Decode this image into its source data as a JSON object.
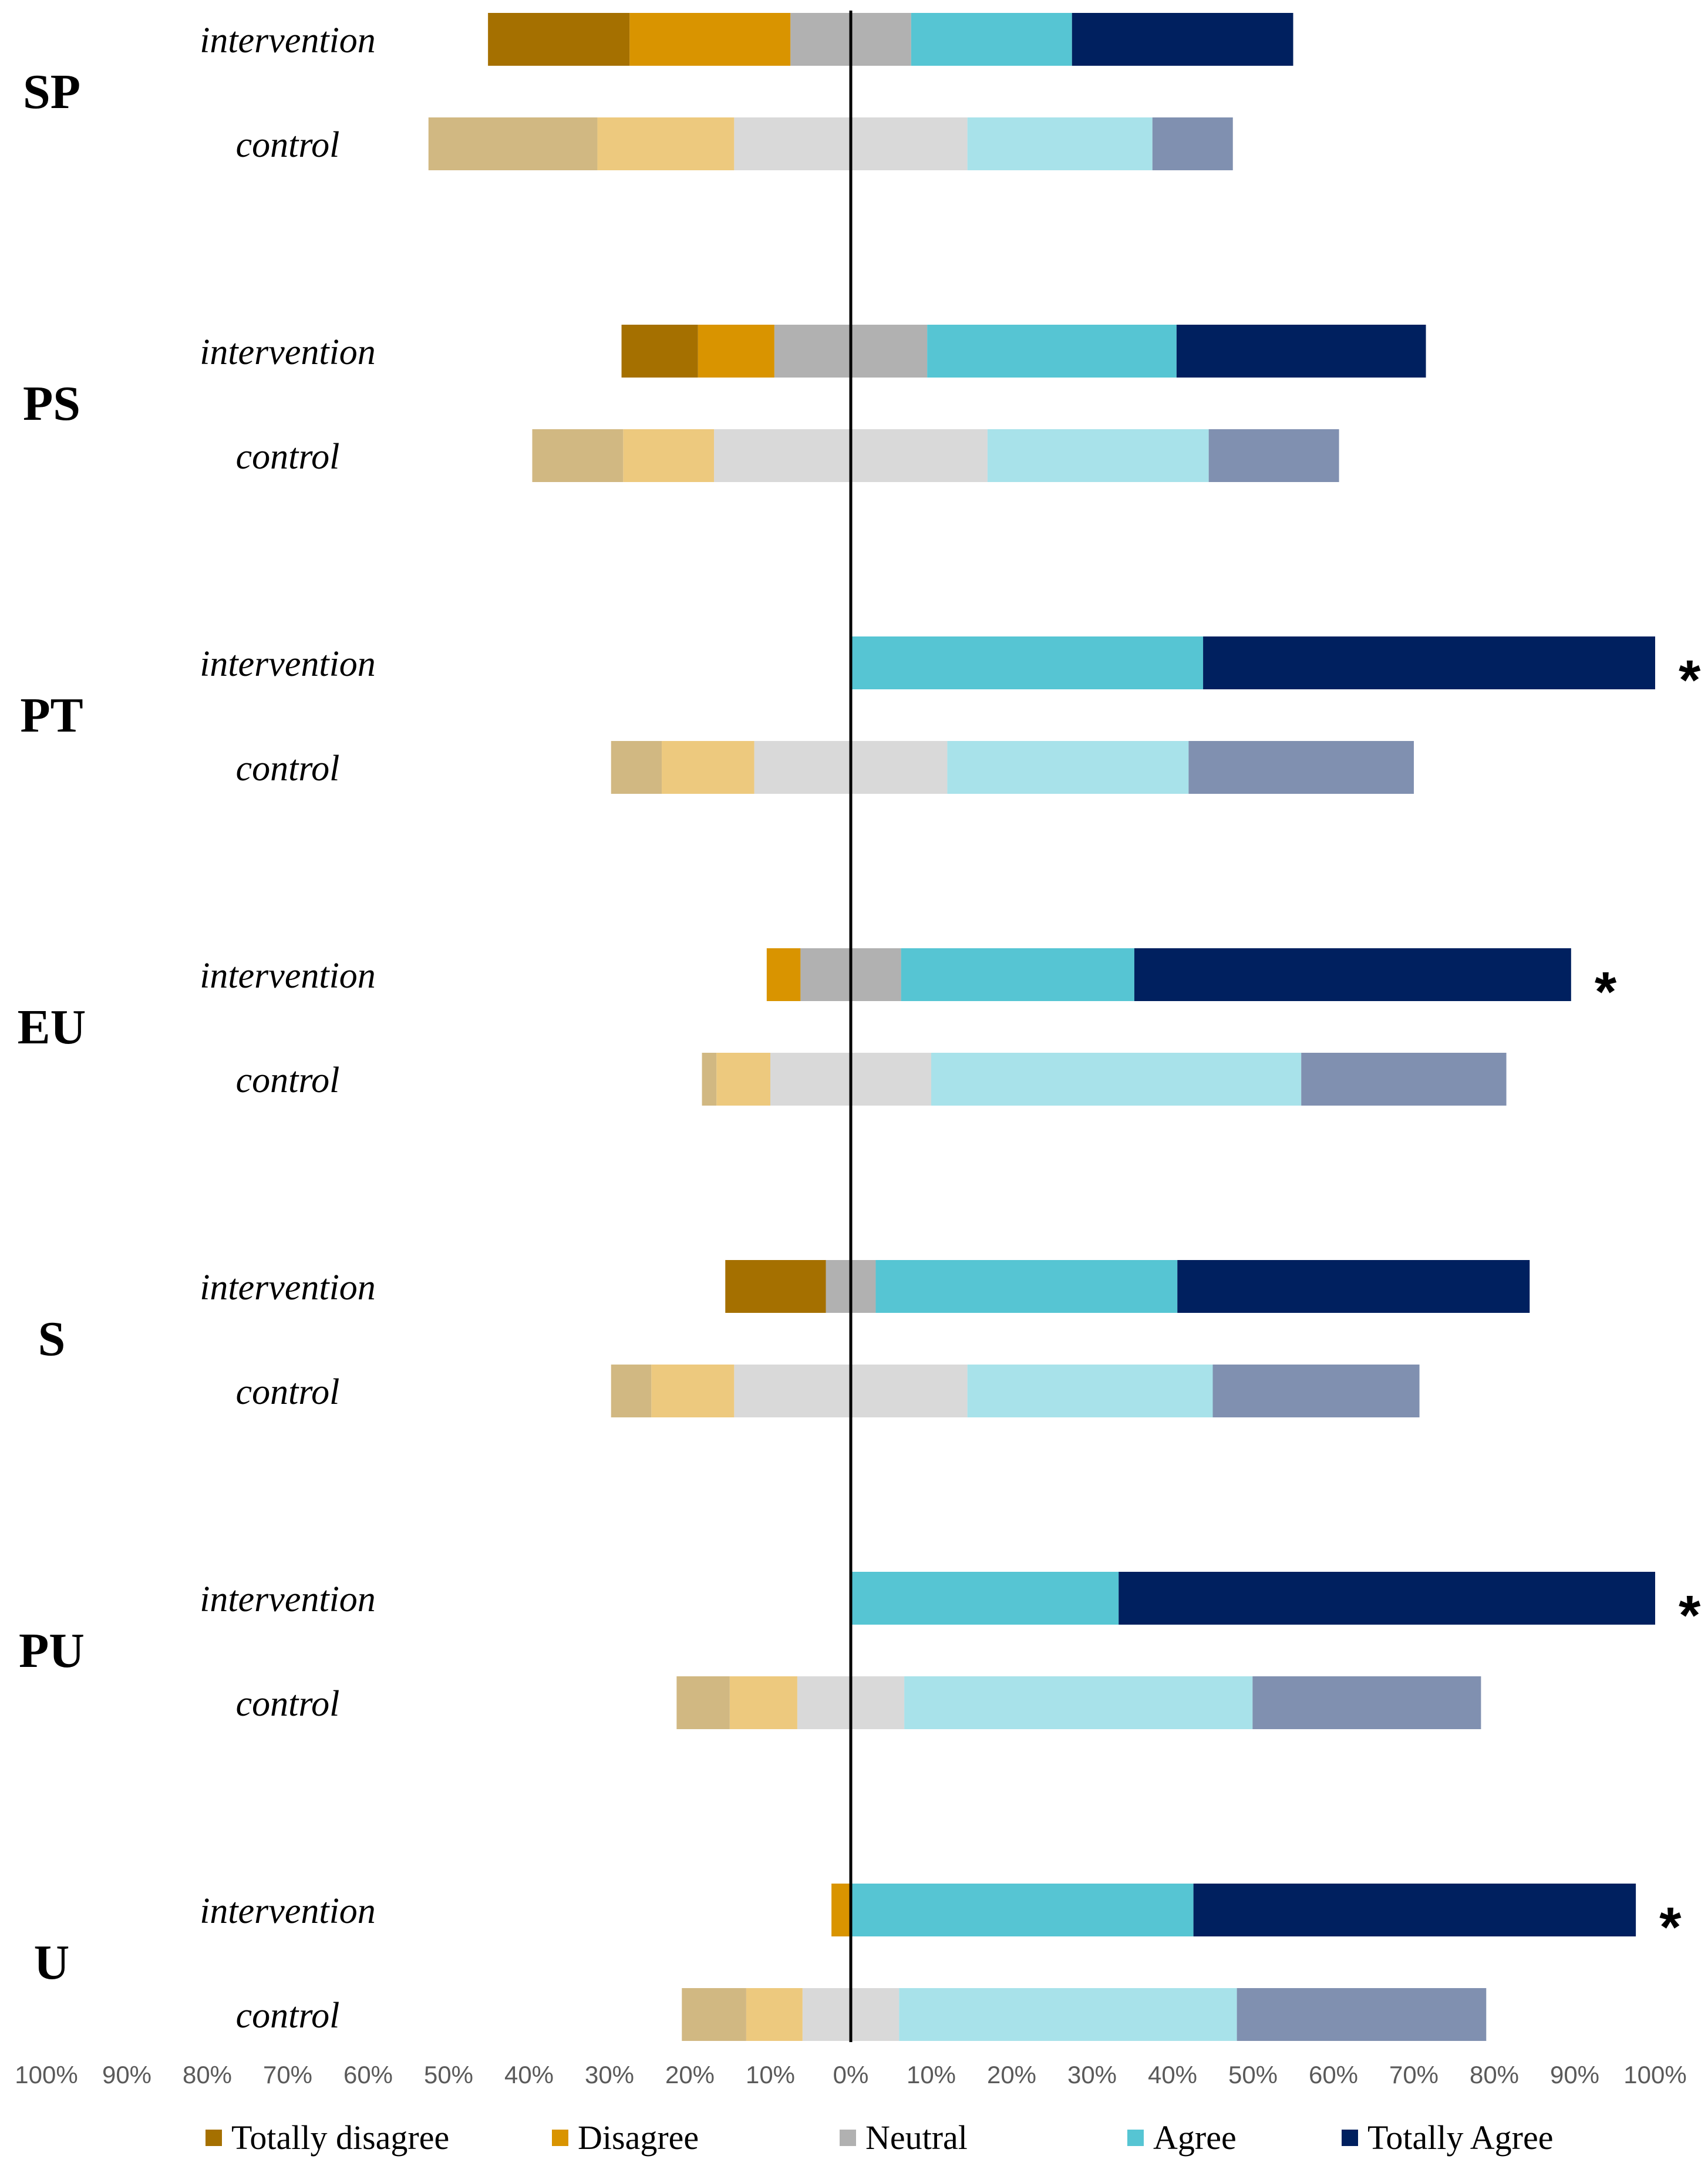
{
  "chart_data": {
    "type": "bar",
    "orientation": "horizontal-diverging",
    "title": "",
    "xlabel": "",
    "ylabel": "",
    "xlim": [
      -1,
      1
    ],
    "x_ticks": [
      -1.0,
      -0.9,
      -0.8,
      -0.7,
      -0.6,
      -0.5,
      -0.4,
      -0.3,
      -0.2,
      -0.1,
      0,
      0.1,
      0.2,
      0.3,
      0.4,
      0.5,
      0.6,
      0.7,
      0.8,
      0.9,
      1.0
    ],
    "x_tick_labels": [
      "100%",
      "90%",
      "80%",
      "70%",
      "60%",
      "50%",
      "40%",
      "30%",
      "20%",
      "10%",
      "0%",
      "10%",
      "20%",
      "30%",
      "40%",
      "50%",
      "60%",
      "70%",
      "80%",
      "90%",
      "100%"
    ],
    "legend": [
      {
        "key": "totally_disagree",
        "label": "Totally disagree",
        "color": "#A57000"
      },
      {
        "key": "disagree",
        "label": "Disagree",
        "color": "#D99400"
      },
      {
        "key": "neutral",
        "label": "Neutral",
        "color": "#B1B1B1"
      },
      {
        "key": "agree",
        "label": "Agree",
        "color": "#56C5D3"
      },
      {
        "key": "totally_agree",
        "label": "Totally Agree",
        "color": "#00205F"
      }
    ],
    "colors": {
      "intervention": {
        "totally_disagree": "#A57000",
        "disagree": "#D99400",
        "neutral": "#B1B1B1",
        "agree": "#56C5D3",
        "totally_agree": "#00205F"
      },
      "control": {
        "totally_disagree": "#D1B882",
        "disagree": "#EDC97E",
        "neutral": "#D9D9D9",
        "agree": "#A8E2EA",
        "totally_agree": "#8090B0"
      }
    },
    "groups": [
      {
        "name": "SP",
        "rows": [
          {
            "label": "intervention",
            "star": "",
            "values": {
              "totally_disagree": 0.176,
              "disagree": 0.2,
              "neutral": 0.15,
              "agree": 0.2,
              "totally_agree": 0.275
            }
          },
          {
            "label": "control",
            "star": "",
            "values": {
              "totally_disagree": 0.21,
              "disagree": 0.17,
              "neutral": 0.29,
              "agree": 0.23,
              "totally_agree": 0.1
            }
          }
        ]
      },
      {
        "name": "PS",
        "rows": [
          {
            "label": "intervention",
            "star": "",
            "values": {
              "totally_disagree": 0.095,
              "disagree": 0.095,
              "neutral": 0.19,
              "agree": 0.31,
              "totally_agree": 0.31
            }
          },
          {
            "label": "control",
            "star": "",
            "values": {
              "totally_disagree": 0.113,
              "disagree": 0.113,
              "neutral": 0.34,
              "agree": 0.275,
              "totally_agree": 0.162
            }
          }
        ]
      },
      {
        "name": "PT",
        "rows": [
          {
            "label": "intervention",
            "star": "*",
            "values": {
              "totally_disagree": 0,
              "disagree": 0,
              "neutral": 0,
              "agree": 0.438,
              "totally_agree": 0.562
            }
          },
          {
            "label": "control",
            "star": "",
            "values": {
              "totally_disagree": 0.063,
              "disagree": 0.115,
              "neutral": 0.24,
              "agree": 0.3,
              "totally_agree": 0.28
            }
          }
        ]
      },
      {
        "name": "EU",
        "rows": [
          {
            "label": "intervention",
            "star": "*",
            "values": {
              "totally_disagree": 0,
              "disagree": 0.042,
              "neutral": 0.125,
              "agree": 0.29,
              "totally_agree": 0.543
            }
          },
          {
            "label": "control",
            "star": "",
            "values": {
              "totally_disagree": 0.018,
              "disagree": 0.067,
              "neutral": 0.2,
              "agree": 0.46,
              "totally_agree": 0.255
            }
          }
        ]
      },
      {
        "name": "S",
        "rows": [
          {
            "label": "intervention",
            "star": "",
            "values": {
              "totally_disagree": 0.125,
              "disagree": 0,
              "neutral": 0.062,
              "agree": 0.375,
              "totally_agree": 0.438
            }
          },
          {
            "label": "control",
            "star": "",
            "values": {
              "totally_disagree": 0.05,
              "disagree": 0.103,
              "neutral": 0.29,
              "agree": 0.305,
              "totally_agree": 0.257
            }
          }
        ]
      },
      {
        "name": "PU",
        "rows": [
          {
            "label": "intervention",
            "star": "*",
            "values": {
              "totally_disagree": 0,
              "disagree": 0,
              "neutral": 0,
              "agree": 0.333,
              "totally_agree": 0.667
            }
          },
          {
            "label": "control",
            "star": "",
            "values": {
              "totally_disagree": 0.066,
              "disagree": 0.084,
              "neutral": 0.133,
              "agree": 0.433,
              "totally_agree": 0.284
            }
          }
        ]
      },
      {
        "name": "U",
        "rows": [
          {
            "label": "intervention",
            "star": "*",
            "values": {
              "totally_disagree": 0,
              "disagree": 0.024,
              "neutral": 0,
              "agree": 0.426,
              "totally_agree": 0.55
            }
          },
          {
            "label": "control",
            "star": "",
            "values": {
              "totally_disagree": 0.08,
              "disagree": 0.07,
              "neutral": 0.12,
              "agree": 0.42,
              "totally_agree": 0.31
            }
          }
        ]
      }
    ]
  }
}
